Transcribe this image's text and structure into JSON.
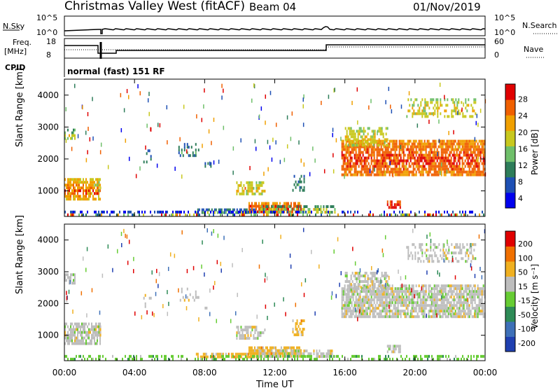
{
  "header": {
    "station": "Christmas Valley West (fitACF)",
    "beam": "Beam 04",
    "date": "01/Nov/2019"
  },
  "panels": {
    "nsky_label": "N.Sky",
    "nsearch_label": "N.Search",
    "nsky_ticks": [
      "10^5",
      "10^0"
    ],
    "nsearch_ticks": [
      "10^5",
      "10^0"
    ],
    "freq_label_1": "Freq.",
    "freq_label_2": "[MHz]",
    "freq_ticks": [
      "18",
      "8"
    ],
    "nave_label": "Nave",
    "nave_ticks": [
      "60",
      "0"
    ],
    "cpid_label": "CPID",
    "cpid_text": "normal (fast) 151 RF"
  },
  "chart_data": [
    {
      "type": "heatmap",
      "name": "power",
      "ylabel": "Slant Range [km]",
      "ylim": [
        200,
        4500
      ],
      "yticks": [
        "4000",
        "3000",
        "2000",
        "1000"
      ],
      "colorbar_label": "Power [dB]",
      "colorbar_ticks": [
        "28",
        "24",
        "20",
        "16",
        "12",
        "8",
        "4"
      ],
      "colors": [
        "#0000ee",
        "#1e50b4",
        "#2e7d5a",
        "#6fbf6a",
        "#c8c81e",
        "#f0a000",
        "#f06000",
        "#e00000"
      ]
    },
    {
      "type": "heatmap",
      "name": "velocity",
      "ylabel": "Slant Range [km]",
      "ylim": [
        200,
        4500
      ],
      "yticks": [
        "4000",
        "3000",
        "2000",
        "1000"
      ],
      "colorbar_label": "Velocity [m s⁻¹]",
      "colorbar_ticks": [
        "200",
        "100",
        "50",
        "15",
        "-15",
        "-50",
        "-100",
        "-200"
      ],
      "colors": [
        "#1f3fb0",
        "#3e70b8",
        "#2e8b57",
        "#66cc33",
        "#bdbdbd",
        "#f0b020",
        "#f07000",
        "#e00000"
      ]
    }
  ],
  "xaxis": {
    "ticks": [
      "00:00",
      "04:00",
      "08:00",
      "12:00",
      "16:00",
      "20:00",
      "00:00"
    ],
    "label": "Time UT"
  }
}
